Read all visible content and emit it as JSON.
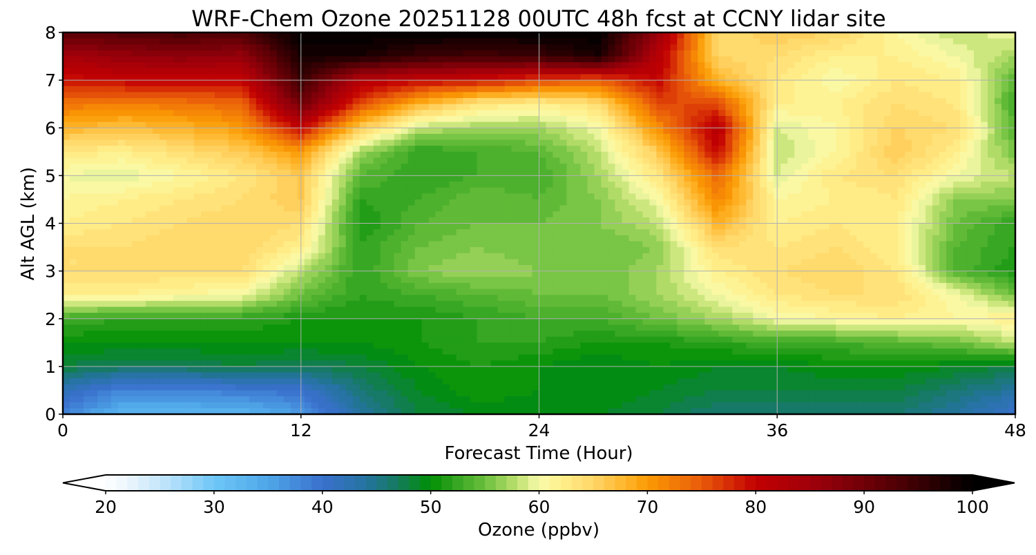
{
  "chart_data": {
    "type": "heatmap",
    "title": "WRF-Chem Ozone  20251128 00UTC 48h fcst at CCNY lidar site",
    "xlabel": "Forecast Time (Hour)",
    "ylabel": "Alt AGL (km)",
    "xlim": [
      0,
      48
    ],
    "ylim": [
      0,
      8
    ],
    "x_ticks": [
      "0",
      "12",
      "24",
      "36",
      "48"
    ],
    "y_ticks": [
      "0",
      "1",
      "2",
      "3",
      "4",
      "5",
      "6",
      "7",
      "8"
    ],
    "grid": true,
    "x_hours": [
      0,
      3,
      6,
      9,
      12,
      15,
      18,
      21,
      24,
      27,
      30,
      33,
      36,
      39,
      42,
      45,
      48
    ],
    "altitudes_km": [
      0,
      0.5,
      1,
      1.5,
      2,
      2.5,
      3,
      3.5,
      4,
      4.5,
      5,
      5.5,
      6,
      6.5,
      7,
      7.5,
      8
    ],
    "ozone_ppbv": [
      [
        38,
        33,
        33,
        33,
        36,
        44,
        48,
        49,
        49,
        49,
        48,
        46,
        46,
        46,
        46,
        44,
        40
      ],
      [
        42,
        38,
        38,
        39,
        40,
        46,
        49,
        51,
        50,
        50,
        49,
        48,
        48,
        48,
        48,
        46,
        44
      ],
      [
        48,
        47,
        47,
        48,
        47,
        48,
        50,
        51,
        50,
        49,
        50,
        49,
        49,
        50,
        50,
        49,
        48
      ],
      [
        50,
        50,
        50,
        50,
        50,
        50,
        51,
        52,
        52,
        51,
        51,
        52,
        53,
        53,
        54,
        55,
        58
      ],
      [
        53,
        52,
        52,
        52,
        51,
        51,
        51,
        52,
        53,
        53,
        55,
        57,
        60,
        61,
        62,
        61,
        62
      ],
      [
        62,
        62,
        61,
        60,
        55,
        52,
        53,
        54,
        55,
        55,
        57,
        60,
        63,
        64,
        64,
        60,
        55
      ],
      [
        64,
        64,
        64,
        64,
        58,
        52,
        56,
        57,
        56,
        55,
        57,
        62,
        64,
        65,
        63,
        54,
        51
      ],
      [
        64,
        64,
        65,
        65,
        62,
        52,
        55,
        56,
        55,
        55,
        56,
        64,
        63,
        64,
        62,
        54,
        52
      ],
      [
        62,
        63,
        64,
        65,
        64,
        51,
        54,
        55,
        55,
        56,
        58,
        68,
        62,
        63,
        62,
        55,
        52
      ],
      [
        61,
        62,
        63,
        64,
        66,
        52,
        53,
        55,
        54,
        56,
        60,
        72,
        61,
        62,
        63,
        56,
        56
      ],
      [
        60,
        59,
        61,
        63,
        66,
        54,
        52,
        53,
        53,
        57,
        63,
        74,
        59,
        63,
        64,
        60,
        58
      ],
      [
        63,
        62,
        64,
        66,
        70,
        57,
        52,
        53,
        54,
        58,
        66,
        80,
        58,
        61,
        66,
        62,
        55
      ],
      [
        68,
        67,
        68,
        70,
        80,
        66,
        58,
        57,
        57,
        60,
        71,
        82,
        59,
        61,
        65,
        64,
        54
      ],
      [
        73,
        72,
        73,
        74,
        90,
        76,
        68,
        63,
        62,
        64,
        76,
        76,
        62,
        62,
        64,
        63,
        53
      ],
      [
        79,
        80,
        80,
        80,
        95,
        82,
        80,
        79,
        76,
        75,
        80,
        68,
        63,
        60,
        63,
        62,
        54
      ],
      [
        84,
        86,
        87,
        86,
        98,
        98,
        95,
        94,
        95,
        98,
        82,
        65,
        64,
        62,
        62,
        60,
        57
      ],
      [
        92,
        93,
        94,
        93,
        100,
        100,
        100,
        100,
        100,
        100,
        86,
        64,
        66,
        65,
        61,
        58,
        60
      ]
    ],
    "colorbar": {
      "label": "Ozone  (ppbv)",
      "min": 20,
      "max": 100,
      "ticks": [
        "20",
        "30",
        "40",
        "50",
        "60",
        "70",
        "80",
        "90",
        "100"
      ],
      "extend": "both",
      "levels_per_10": 10,
      "stops": [
        {
          "v": 20,
          "c": "#ffffff"
        },
        {
          "v": 22,
          "c": "#ecf6fd"
        },
        {
          "v": 25,
          "c": "#c6e6fb"
        },
        {
          "v": 30,
          "c": "#6ec7f7"
        },
        {
          "v": 35,
          "c": "#4fa6e8"
        },
        {
          "v": 40,
          "c": "#3a70cd"
        },
        {
          "v": 44,
          "c": "#2573a0"
        },
        {
          "v": 47,
          "c": "#147a5c"
        },
        {
          "v": 50,
          "c": "#008f04"
        },
        {
          "v": 52,
          "c": "#2ea21f"
        },
        {
          "v": 55,
          "c": "#6bbf3c"
        },
        {
          "v": 58,
          "c": "#bfe070"
        },
        {
          "v": 60,
          "c": "#f8fbaa"
        },
        {
          "v": 62,
          "c": "#fff08c"
        },
        {
          "v": 65,
          "c": "#ffd567"
        },
        {
          "v": 68,
          "c": "#ffb42a"
        },
        {
          "v": 70,
          "c": "#fb9b05"
        },
        {
          "v": 75,
          "c": "#e95a09"
        },
        {
          "v": 80,
          "c": "#c20002"
        },
        {
          "v": 85,
          "c": "#a0000a"
        },
        {
          "v": 90,
          "c": "#700007"
        },
        {
          "v": 95,
          "c": "#3a0003"
        },
        {
          "v": 100,
          "c": "#000000"
        }
      ]
    }
  }
}
